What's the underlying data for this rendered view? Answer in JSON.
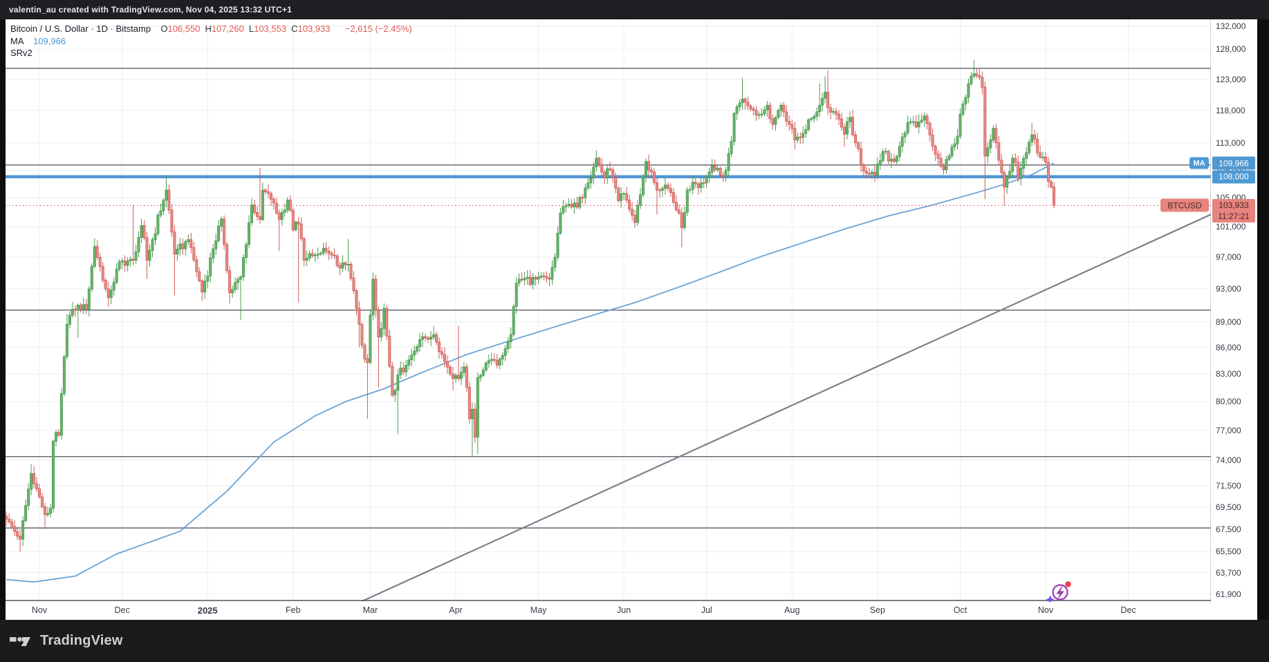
{
  "attribution_bar": {
    "text": "valentin_au created with TradingView.com, Nov 04, 2025 13:32 UTC+1"
  },
  "legend": {
    "symbol_line": {
      "title": "Bitcoin / U.S. Dollar",
      "separator": "·",
      "interval": "1D",
      "exchange": "Bitstamp",
      "ohlc": [
        {
          "k": "O",
          "v": "106,550"
        },
        {
          "k": "H",
          "v": "107,260"
        },
        {
          "k": "L",
          "v": "103,553"
        },
        {
          "k": "C",
          "v": "103,933"
        }
      ],
      "change": "−2,615 (−2.45%)"
    },
    "ma_line": {
      "label": "MA",
      "value": "109,966"
    },
    "indicator_line": {
      "label": "SRv2"
    }
  },
  "axis_labels": {
    "ma_tag": "MA",
    "ma_value": "109,966",
    "level_value": "108,000",
    "symbol_tag": "BTCUSD",
    "price_value": "103,933",
    "countdown": "11:27:21"
  },
  "footer": {
    "brand": "TradingView"
  },
  "colors": {
    "up_body": "#68b36c",
    "up_line": "#4b9a50",
    "down_body": "#e68c87",
    "down_line": "#cf5a55",
    "ma_line": "#6ba3d6",
    "level_line_blue": "#4f96d2",
    "sr_line": "#686b74",
    "trend_line": "#7d8089",
    "price_dotted": "#e05c5c",
    "grid": "#eceef1",
    "label_blue_bg": "#4f99d3",
    "label_red_bg": "#e8837e",
    "label_red_text": "#442a28"
  },
  "chart_data": {
    "type": "candlestick",
    "symbol": "BTCUSD",
    "title": "Bitcoin / U.S. Dollar",
    "exchange": "Bitstamp",
    "interval": "1D",
    "scale": "log",
    "grid": true,
    "x_range": "Oct 2024 – Dec 2025",
    "y_axis_side": "right",
    "last_ohlc": {
      "open": 106550,
      "high": 107260,
      "low": 103553,
      "close": 103933
    },
    "change_abs": -2615,
    "change_pct": -2.45,
    "ma_last": 109966,
    "level_line": 108000,
    "current_price": 103933,
    "countdown": "11:27:21",
    "y_ticks": [
      {
        "label": "132,000",
        "value": 132000
      },
      {
        "label": "128,000",
        "value": 128000
      },
      {
        "label": "123,000",
        "value": 123000
      },
      {
        "label": "118,000",
        "value": 118000
      },
      {
        "label": "113,000",
        "value": 113000
      },
      {
        "label": "109,000",
        "value": 109000
      },
      {
        "label": "105,000",
        "value": 105000
      },
      {
        "label": "101,000",
        "value": 101000
      },
      {
        "label": "97,000",
        "value": 97000
      },
      {
        "label": "93,000",
        "value": 93000
      },
      {
        "label": "89,000",
        "value": 89000
      },
      {
        "label": "86,000",
        "value": 86000
      },
      {
        "label": "83,000",
        "value": 83000
      },
      {
        "label": "80,000",
        "value": 80000
      },
      {
        "label": "77,000",
        "value": 77000
      },
      {
        "label": "74,000",
        "value": 74000
      },
      {
        "label": "71,500",
        "value": 71500
      },
      {
        "label": "69,500",
        "value": 69500
      },
      {
        "label": "67,500",
        "value": 67500
      },
      {
        "label": "65,500",
        "value": 65500
      },
      {
        "label": "63,700",
        "value": 63700
      },
      {
        "label": "61,900",
        "value": 61900
      }
    ],
    "x_ticks": [
      {
        "label": "Nov",
        "day": 12
      },
      {
        "label": "Dec",
        "day": 42
      },
      {
        "label": "2025",
        "day": 73,
        "bold": true
      },
      {
        "label": "Feb",
        "day": 104
      },
      {
        "label": "Mar",
        "day": 132
      },
      {
        "label": "Apr",
        "day": 163
      },
      {
        "label": "May",
        "day": 193
      },
      {
        "label": "Jun",
        "day": 224
      },
      {
        "label": "Jul",
        "day": 254
      },
      {
        "label": "Aug",
        "day": 285
      },
      {
        "label": "Sep",
        "day": 316
      },
      {
        "label": "Oct",
        "day": 346
      },
      {
        "label": "Nov",
        "day": 377
      },
      {
        "label": "Dec",
        "day": 407
      }
    ],
    "sr_levels": [
      124800,
      109700,
      90400,
      74350,
      67600
    ],
    "trendline": {
      "from": {
        "day": 128,
        "price": 61200
      },
      "to": {
        "day": 437,
        "price": 102700
      }
    },
    "ma_waypoints": [
      [
        0,
        63100
      ],
      [
        10,
        62900
      ],
      [
        25,
        63400
      ],
      [
        40,
        65300
      ],
      [
        63,
        67300
      ],
      [
        80,
        71000
      ],
      [
        97,
        75800
      ],
      [
        112,
        78500
      ],
      [
        123,
        80000
      ],
      [
        137,
        81400
      ],
      [
        151,
        83200
      ],
      [
        167,
        85200
      ],
      [
        182,
        86700
      ],
      [
        197,
        88200
      ],
      [
        212,
        89700
      ],
      [
        228,
        91300
      ],
      [
        243,
        93100
      ],
      [
        258,
        95000
      ],
      [
        273,
        97000
      ],
      [
        289,
        98900
      ],
      [
        304,
        100700
      ],
      [
        320,
        102500
      ],
      [
        335,
        103900
      ],
      [
        350,
        105500
      ],
      [
        362,
        106900
      ],
      [
        372,
        108300
      ],
      [
        380,
        109966
      ]
    ],
    "close_waypoints": [
      [
        0,
        68400
      ],
      [
        5,
        66600,
        null,
        65500
      ],
      [
        9,
        72700,
        73600,
        null
      ],
      [
        14,
        68800,
        null,
        67500
      ],
      [
        16,
        69400
      ],
      [
        17,
        75900
      ],
      [
        19,
        76500
      ],
      [
        22,
        88700,
        89900,
        null
      ],
      [
        24,
        90500
      ],
      [
        26,
        91000,
        null,
        87100
      ],
      [
        29,
        90500
      ],
      [
        32,
        98400,
        99500,
        null
      ],
      [
        36,
        93000
      ],
      [
        37,
        91900,
        null,
        90800
      ],
      [
        41,
        96400
      ],
      [
        46,
        96600,
        104000,
        null
      ],
      [
        49,
        101200
      ],
      [
        51,
        96600,
        null,
        94200
      ],
      [
        58,
        106100,
        108250,
        null
      ],
      [
        61,
        97400,
        null,
        92200
      ],
      [
        66,
        99300
      ],
      [
        71,
        92600,
        null,
        91500
      ],
      [
        75,
        98100
      ],
      [
        78,
        102100
      ],
      [
        81,
        92500,
        null,
        91200
      ],
      [
        85,
        94500,
        null,
        89200
      ],
      [
        89,
        104000
      ],
      [
        92,
        102000,
        109300,
        null
      ],
      [
        93,
        106100
      ],
      [
        96,
        104800
      ],
      [
        99,
        102000,
        null,
        97800
      ],
      [
        102,
        104700
      ],
      [
        104,
        100600
      ],
      [
        106,
        101400,
        null,
        91300
      ],
      [
        108,
        96600
      ],
      [
        113,
        97400
      ],
      [
        117,
        97500
      ],
      [
        121,
        95600
      ],
      [
        124,
        96100,
        99400,
        null
      ],
      [
        128,
        88700,
        null,
        86000
      ],
      [
        130,
        84700
      ],
      [
        131,
        84300,
        null,
        78200
      ],
      [
        133,
        94200
      ],
      [
        135,
        87200,
        null,
        81500
      ],
      [
        137,
        90600
      ],
      [
        140,
        80700
      ],
      [
        142,
        82900,
        null,
        76600
      ],
      [
        145,
        84000
      ],
      [
        150,
        86900
      ],
      [
        155,
        87500,
        88500,
        null
      ],
      [
        159,
        84400
      ],
      [
        162,
        82500,
        null,
        81200
      ],
      [
        164,
        82500,
        88500,
        null
      ],
      [
        166,
        83800
      ],
      [
        168,
        78200
      ],
      [
        169,
        79200,
        null,
        74400
      ],
      [
        170,
        76300
      ],
      [
        171,
        82600,
        null,
        74600
      ],
      [
        175,
        84500
      ],
      [
        178,
        84000
      ],
      [
        183,
        87500
      ],
      [
        185,
        93700
      ],
      [
        188,
        94300
      ],
      [
        192,
        94200
      ],
      [
        197,
        94200
      ],
      [
        199,
        97000
      ],
      [
        201,
        102900
      ],
      [
        204,
        104100
      ],
      [
        207,
        103700
      ],
      [
        210,
        106400
      ],
      [
        214,
        110700,
        111900,
        null
      ],
      [
        217,
        107800
      ],
      [
        219,
        109000
      ],
      [
        222,
        104600
      ],
      [
        224,
        105600
      ],
      [
        228,
        101600
      ],
      [
        232,
        110200
      ],
      [
        236,
        106100,
        null,
        102700
      ],
      [
        239,
        106800
      ],
      [
        243,
        103300
      ],
      [
        245,
        100900,
        null,
        98300
      ],
      [
        247,
        106100
      ],
      [
        249,
        107200
      ],
      [
        253,
        107100
      ],
      [
        256,
        109600
      ],
      [
        259,
        108200
      ],
      [
        261,
        108900
      ],
      [
        263,
        113200
      ],
      [
        264,
        117500
      ],
      [
        267,
        119800,
        123200,
        null
      ],
      [
        269,
        118700
      ],
      [
        271,
        118000
      ],
      [
        274,
        117400
      ],
      [
        276,
        118800
      ],
      [
        278,
        115800
      ],
      [
        281,
        118800
      ],
      [
        284,
        115800
      ],
      [
        286,
        113400,
        null,
        112000
      ],
      [
        290,
        115000
      ],
      [
        292,
        116700
      ],
      [
        295,
        118800,
        122300,
        null
      ],
      [
        297,
        120900,
        123500,
        null
      ],
      [
        298,
        118400,
        124500,
        null
      ],
      [
        301,
        117400
      ],
      [
        304,
        114300,
        null,
        112400
      ],
      [
        306,
        116900
      ],
      [
        308,
        113000
      ],
      [
        310,
        109700,
        null,
        108700
      ],
      [
        313,
        108400
      ],
      [
        315,
        108200,
        null,
        107300
      ],
      [
        318,
        111700
      ],
      [
        322,
        110200
      ],
      [
        325,
        113900
      ],
      [
        327,
        116100
      ],
      [
        330,
        115400
      ],
      [
        333,
        117100
      ],
      [
        336,
        112500
      ],
      [
        340,
        109000,
        null,
        108600
      ],
      [
        343,
        112400
      ],
      [
        345,
        114000
      ],
      [
        347,
        119000
      ],
      [
        350,
        123500
      ],
      [
        351,
        123900,
        126200,
        null
      ],
      [
        353,
        123300
      ],
      [
        354,
        121700
      ],
      [
        355,
        111000,
        null,
        104800
      ],
      [
        358,
        115200
      ],
      [
        359,
        113000
      ],
      [
        361,
        108600
      ],
      [
        362,
        106500,
        null,
        103900
      ],
      [
        365,
        110700
      ],
      [
        367,
        107800
      ],
      [
        370,
        111500
      ],
      [
        372,
        114200,
        116000,
        null
      ],
      [
        374,
        111500
      ],
      [
        377,
        110100
      ],
      [
        378,
        107300
      ],
      [
        379,
        106550
      ],
      [
        380,
        103933
      ]
    ]
  }
}
